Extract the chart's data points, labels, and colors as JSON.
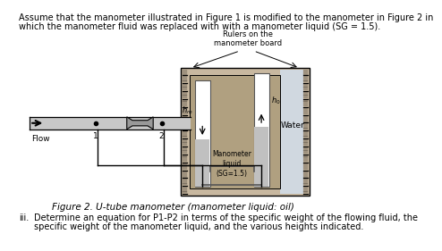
{
  "title_line1": "Assume that the manometer illustrated in Figure 1 is modified to the manometer in Figure 2 in",
  "title_line2": "which the manometer fluid was replaced with with a manometer liquid (SG = 1.5).",
  "caption": "Figure 2. U-tube manometer (manometer liquid: oil)",
  "bottom_text_iii": "iii.",
  "bottom_text_body": "Determine an equation for P1-P2 in terms of the specific weight of the flowing fluid, the",
  "bottom_text_body2": "specific weight of the manometer liquid, and the various heights indicated.",
  "rulers_label": "Rulers on the\nmanometer board",
  "manometer_liquid_label": "Manometer\nliquid\n(SG=1.5)",
  "water_label": "Water",
  "flow_label": "Flow",
  "board_color": "#c8b8a0",
  "board_dark": "#b0a080",
  "liquid_color": "#c0c0c0",
  "water_color": "#d0d8e0",
  "pipe_fill": "#c8c8c8",
  "bg_color": "#e8e4de"
}
